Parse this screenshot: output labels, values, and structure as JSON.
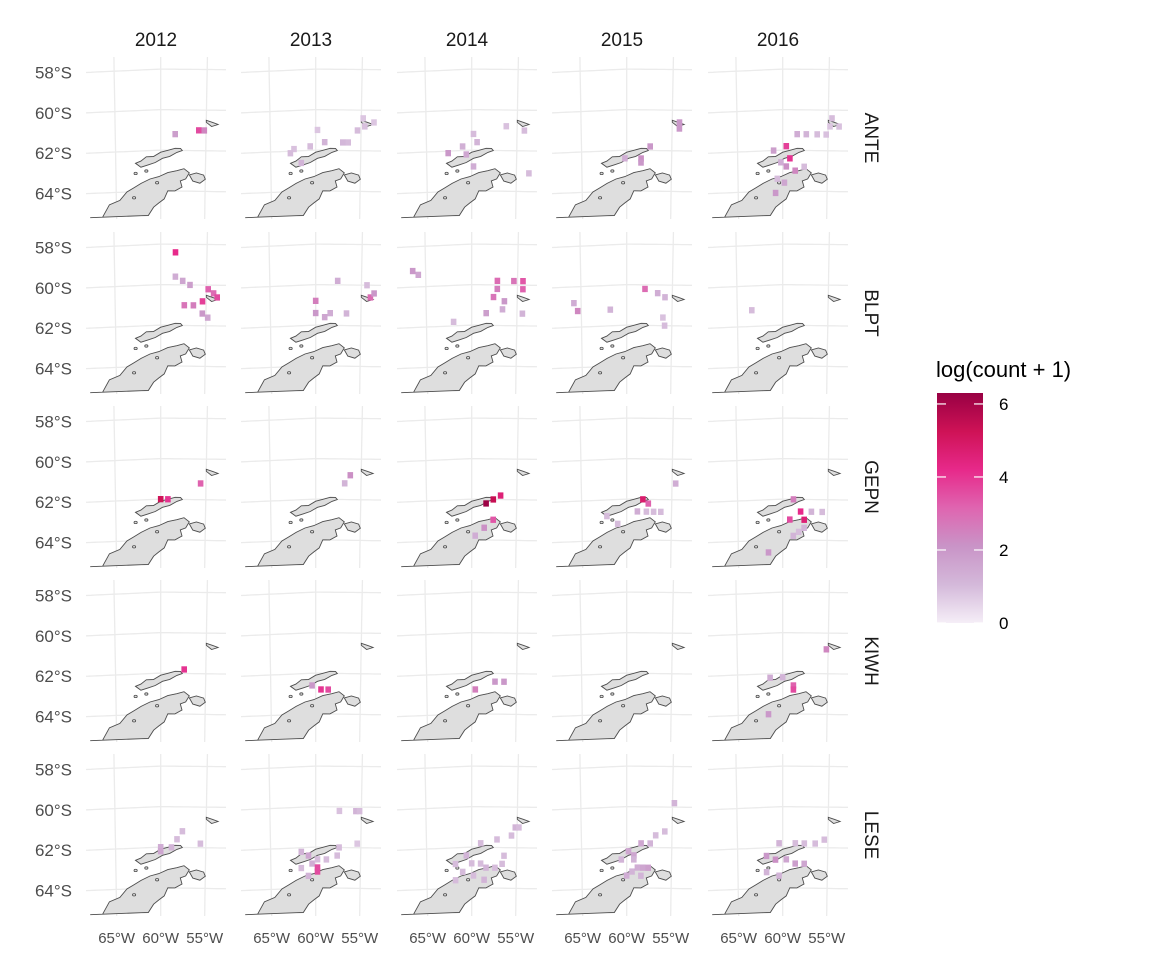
{
  "chart_data": {
    "type": "heatmap",
    "columns": [
      "2012",
      "2013",
      "2014",
      "2015",
      "2016"
    ],
    "rows": [
      "ANTE",
      "BLPT",
      "GEPN",
      "KIWH",
      "LESE"
    ],
    "y_tick_labels": [
      "58°S",
      "60°S",
      "62°S",
      "64°S"
    ],
    "y_ticks": [
      -58,
      -60,
      -62,
      -64
    ],
    "x_tick_labels": [
      "65°W",
      "60°W",
      "55°W"
    ],
    "x_ticks": [
      -65,
      -60,
      -55
    ],
    "xlim": [
      -68,
      -53
    ],
    "ylim": [
      -65.2,
      -57.6
    ],
    "grid": true,
    "legend": {
      "title": "log(count + 1)",
      "ticks": [
        0,
        2,
        4,
        6
      ],
      "range": [
        0,
        6.3
      ],
      "colors": [
        "#f5eef7",
        "#d4b9da",
        "#c994c7",
        "#df65b0",
        "#e7298a",
        "#ce1256",
        "#980043"
      ],
      "position": "right"
    },
    "cells": {
      "ANTE": {
        "2012": [
          [
            -58.4,
            -61.2,
            1.8
          ],
          [
            -55.8,
            -61.0,
            3.6
          ],
          [
            -55.2,
            -61.0,
            2.4
          ]
        ],
        "2013": [
          [
            -54.8,
            -60.4,
            0.8
          ],
          [
            -54.6,
            -60.8,
            0.9
          ],
          [
            -55.4,
            -61.0,
            1.0
          ],
          [
            -53.6,
            -60.6,
            0.8
          ],
          [
            -59.8,
            -61.0,
            0.8
          ],
          [
            -56.4,
            -61.6,
            1.0
          ],
          [
            -57.0,
            -61.6,
            1.1
          ],
          [
            -59.0,
            -61.6,
            1.2
          ],
          [
            -60.6,
            -61.8,
            1.0
          ],
          [
            -62.4,
            -61.9,
            0.9
          ],
          [
            -62.8,
            -62.1,
            1.0
          ],
          [
            -61.6,
            -62.6,
            1.2
          ]
        ],
        "2014": [
          [
            -59.8,
            -61.2,
            1.0
          ],
          [
            -59.4,
            -61.6,
            1.2
          ],
          [
            -61.0,
            -61.8,
            1.3
          ],
          [
            -62.6,
            -62.1,
            2.0
          ],
          [
            -60.6,
            -62.2,
            1.6
          ],
          [
            -59.8,
            -62.8,
            1.4
          ],
          [
            -54.2,
            -61.0,
            1.0
          ],
          [
            -56.2,
            -60.8,
            0.9
          ],
          [
            -53.6,
            -63.1,
            1.0
          ]
        ],
        "2015": [
          [
            -57.4,
            -61.8,
            2.0
          ],
          [
            -58.4,
            -62.4,
            2.2
          ],
          [
            -58.4,
            -62.6,
            2.0
          ],
          [
            -54.2,
            -60.6,
            2.0
          ],
          [
            -54.2,
            -60.9,
            2.0
          ],
          [
            -60.2,
            -62.4,
            1.4
          ]
        ],
        "2016": [
          [
            -58.4,
            -61.2,
            1.4
          ],
          [
            -57.4,
            -61.2,
            1.2
          ],
          [
            -56.2,
            -61.2,
            1.0
          ],
          [
            -55.2,
            -61.2,
            0.9
          ],
          [
            -54.6,
            -60.4,
            1.0
          ],
          [
            -53.8,
            -60.8,
            0.9
          ],
          [
            -54.8,
            -60.8,
            0.8
          ],
          [
            -59.6,
            -61.8,
            3.8
          ],
          [
            -59.2,
            -62.4,
            4.0
          ],
          [
            -59.6,
            -62.8,
            2.2
          ],
          [
            -58.6,
            -63.0,
            2.4
          ],
          [
            -61.0,
            -62.0,
            1.8
          ],
          [
            -60.2,
            -62.6,
            1.4
          ],
          [
            -60.6,
            -63.4,
            1.0
          ],
          [
            -59.8,
            -63.6,
            1.6
          ],
          [
            -60.8,
            -64.1,
            2.0
          ],
          [
            -57.6,
            -62.8,
            1.0
          ]
        ]
      },
      "BLPT": {
        "2012": [
          [
            -58.4,
            -58.4,
            4.2
          ],
          [
            -58.4,
            -59.6,
            1.4
          ],
          [
            -57.6,
            -59.8,
            1.6
          ],
          [
            -56.8,
            -60.0,
            1.8
          ],
          [
            -54.8,
            -60.2,
            3.2
          ],
          [
            -54.2,
            -60.4,
            3.0
          ],
          [
            -55.4,
            -60.8,
            3.8
          ],
          [
            -56.4,
            -61.0,
            2.6
          ],
          [
            -57.4,
            -61.0,
            2.8
          ],
          [
            -55.4,
            -61.4,
            2.0
          ],
          [
            -54.8,
            -61.6,
            1.6
          ],
          [
            -53.8,
            -60.6,
            3.6
          ]
        ],
        "2013": [
          [
            -57.6,
            -59.8,
            1.4
          ],
          [
            -54.4,
            -60.0,
            1.0
          ],
          [
            -54.0,
            -60.6,
            3.0
          ],
          [
            -53.6,
            -60.4,
            2.0
          ],
          [
            -60.0,
            -60.8,
            2.6
          ],
          [
            -60.0,
            -61.4,
            2.0
          ],
          [
            -58.4,
            -61.4,
            1.4
          ],
          [
            -56.6,
            -61.4,
            1.2
          ],
          [
            -59.0,
            -61.6,
            1.6
          ]
        ],
        "2014": [
          [
            -66.4,
            -59.2,
            2.0
          ],
          [
            -65.8,
            -59.4,
            1.6
          ],
          [
            -57.2,
            -59.8,
            3.0
          ],
          [
            -57.2,
            -60.2,
            2.6
          ],
          [
            -55.4,
            -59.8,
            2.8
          ],
          [
            -54.4,
            -59.8,
            3.4
          ],
          [
            -54.4,
            -60.2,
            3.2
          ],
          [
            -57.6,
            -60.6,
            2.8
          ],
          [
            -56.4,
            -60.8,
            2.0
          ],
          [
            -56.6,
            -61.2,
            1.4
          ],
          [
            -58.4,
            -61.4,
            1.8
          ],
          [
            -54.4,
            -61.4,
            1.2
          ],
          [
            -62.0,
            -61.8,
            1.0
          ]
        ],
        "2015": [
          [
            -65.8,
            -60.8,
            1.4
          ],
          [
            -65.4,
            -61.2,
            2.4
          ],
          [
            -61.8,
            -61.2,
            1.2
          ],
          [
            -58.0,
            -60.2,
            3.0
          ],
          [
            -56.6,
            -60.4,
            1.4
          ],
          [
            -55.8,
            -60.6,
            1.2
          ],
          [
            -56.0,
            -61.6,
            0.9
          ],
          [
            -55.8,
            -62.0,
            1.0
          ]
        ],
        "2016": [
          [
            -63.4,
            -61.2,
            1.0
          ]
        ]
      },
      "GEPN": {
        "2012": [
          [
            -60.0,
            -62.0,
            5.2
          ],
          [
            -59.2,
            -62.0,
            4.0
          ],
          [
            -55.6,
            -61.2,
            3.2
          ]
        ],
        "2013": [
          [
            -56.2,
            -60.8,
            2.2
          ],
          [
            -56.8,
            -61.2,
            1.2
          ]
        ],
        "2014": [
          [
            -58.4,
            -62.2,
            6.2
          ],
          [
            -57.6,
            -62.0,
            5.4
          ],
          [
            -56.8,
            -61.8,
            4.6
          ],
          [
            -57.6,
            -63.0,
            3.4
          ],
          [
            -58.6,
            -63.4,
            2.2
          ],
          [
            -59.6,
            -63.8,
            1.4
          ]
        ],
        "2015": [
          [
            -58.2,
            -62.0,
            4.8
          ],
          [
            -57.6,
            -62.2,
            3.2
          ],
          [
            -58.8,
            -62.6,
            1.4
          ],
          [
            -57.8,
            -62.6,
            1.0
          ],
          [
            -57.0,
            -62.6,
            1.0
          ],
          [
            -56.2,
            -62.6,
            1.0
          ],
          [
            -54.6,
            -61.2,
            1.4
          ],
          [
            -62.2,
            -62.8,
            1.0
          ],
          [
            -61.0,
            -63.2,
            1.0
          ]
        ],
        "2016": [
          [
            -58.8,
            -62.0,
            2.6
          ],
          [
            -58.0,
            -62.6,
            4.2
          ],
          [
            -56.8,
            -62.6,
            1.2
          ],
          [
            -55.6,
            -62.6,
            1.0
          ],
          [
            -59.2,
            -63.0,
            3.6
          ],
          [
            -57.6,
            -63.0,
            4.6
          ],
          [
            -57.6,
            -63.4,
            1.2
          ],
          [
            -58.2,
            -63.6,
            1.0
          ],
          [
            -58.8,
            -63.8,
            1.2
          ],
          [
            -61.6,
            -64.6,
            2.0
          ]
        ]
      },
      "KIWH": {
        "2012": [
          [
            -57.4,
            -61.8,
            4.0
          ]
        ],
        "2013": [
          [
            -60.4,
            -62.6,
            2.0
          ],
          [
            -59.4,
            -62.8,
            4.0
          ],
          [
            -58.6,
            -62.8,
            3.6
          ]
        ],
        "2014": [
          [
            -59.6,
            -62.8,
            2.6
          ],
          [
            -57.4,
            -62.4,
            2.0
          ],
          [
            -56.4,
            -62.4,
            2.0
          ]
        ],
        "2015": [],
        "2016": [
          [
            -61.4,
            -62.2,
            1.4
          ],
          [
            -60.0,
            -62.2,
            1.2
          ],
          [
            -58.8,
            -62.6,
            3.2
          ],
          [
            -58.8,
            -62.8,
            3.6
          ],
          [
            -61.6,
            -64.0,
            2.0
          ],
          [
            -55.2,
            -60.8,
            2.4
          ]
        ]
      },
      "LESE": {
        "2012": [
          [
            -60.0,
            -62.0,
            1.4
          ],
          [
            -60.0,
            -62.2,
            1.6
          ],
          [
            -58.8,
            -62.0,
            1.2
          ],
          [
            -58.2,
            -61.6,
            1.0
          ],
          [
            -57.6,
            -61.2,
            1.0
          ],
          [
            -55.6,
            -61.8,
            1.0
          ]
        ],
        "2013": [
          [
            -57.4,
            -60.2,
            0.9
          ],
          [
            -55.6,
            -60.2,
            1.2
          ],
          [
            -55.2,
            -60.2,
            1.0
          ],
          [
            -55.4,
            -61.8,
            0.8
          ],
          [
            -61.6,
            -62.2,
            1.2
          ],
          [
            -60.8,
            -62.4,
            1.6
          ],
          [
            -60.4,
            -62.8,
            1.4
          ],
          [
            -59.8,
            -62.6,
            1.0
          ],
          [
            -58.8,
            -62.6,
            1.0
          ],
          [
            -59.8,
            -63.0,
            3.6
          ],
          [
            -59.8,
            -63.2,
            3.6
          ],
          [
            -61.6,
            -63.0,
            1.0
          ],
          [
            -60.8,
            -63.4,
            1.2
          ],
          [
            -57.6,
            -62.4,
            1.0
          ],
          [
            -57.4,
            -62.0,
            1.0
          ]
        ],
        "2014": [
          [
            -55.2,
            -61.0,
            1.2
          ],
          [
            -54.8,
            -61.0,
            1.0
          ],
          [
            -55.6,
            -61.4,
            1.0
          ],
          [
            -57.2,
            -61.6,
            1.0
          ],
          [
            -59.0,
            -61.8,
            1.0
          ],
          [
            -60.6,
            -62.4,
            1.2
          ],
          [
            -61.8,
            -62.8,
            1.0
          ],
          [
            -60.0,
            -62.8,
            1.0
          ],
          [
            -59.0,
            -62.8,
            1.0
          ],
          [
            -58.4,
            -63.0,
            1.2
          ],
          [
            -57.4,
            -63.0,
            1.0
          ],
          [
            -59.8,
            -63.4,
            1.0
          ],
          [
            -58.6,
            -63.6,
            1.2
          ],
          [
            -61.8,
            -63.6,
            1.0
          ],
          [
            -61.0,
            -63.2,
            1.0
          ],
          [
            -56.4,
            -62.4,
            1.0
          ],
          [
            -56.6,
            -62.8,
            1.0
          ]
        ],
        "2015": [
          [
            -54.8,
            -59.8,
            1.2
          ],
          [
            -55.8,
            -61.2,
            1.0
          ],
          [
            -56.8,
            -61.4,
            1.0
          ],
          [
            -57.4,
            -61.8,
            1.2
          ],
          [
            -58.4,
            -61.8,
            1.6
          ],
          [
            -59.8,
            -62.2,
            1.6
          ],
          [
            -59.2,
            -62.4,
            1.6
          ],
          [
            -60.6,
            -62.6,
            1.2
          ],
          [
            -59.2,
            -62.6,
            1.2
          ],
          [
            -58.8,
            -63.0,
            1.4
          ],
          [
            -58.2,
            -63.0,
            1.6
          ],
          [
            -57.6,
            -63.0,
            1.8
          ],
          [
            -60.0,
            -63.4,
            1.4
          ],
          [
            -59.4,
            -63.2,
            1.2
          ],
          [
            -58.4,
            -63.4,
            1.2
          ]
        ],
        "2016": [
          [
            -60.4,
            -61.8,
            1.2
          ],
          [
            -58.6,
            -61.8,
            1.0
          ],
          [
            -57.6,
            -61.8,
            1.0
          ],
          [
            -56.4,
            -61.8,
            1.0
          ],
          [
            -55.4,
            -61.6,
            1.0
          ],
          [
            -61.8,
            -62.4,
            2.0
          ],
          [
            -60.8,
            -62.6,
            2.2
          ],
          [
            -59.6,
            -62.6,
            1.6
          ],
          [
            -58.6,
            -62.8,
            1.8
          ],
          [
            -57.6,
            -62.8,
            1.6
          ],
          [
            -61.8,
            -63.2,
            1.2
          ],
          [
            -60.4,
            -63.4,
            1.2
          ]
        ]
      }
    }
  }
}
